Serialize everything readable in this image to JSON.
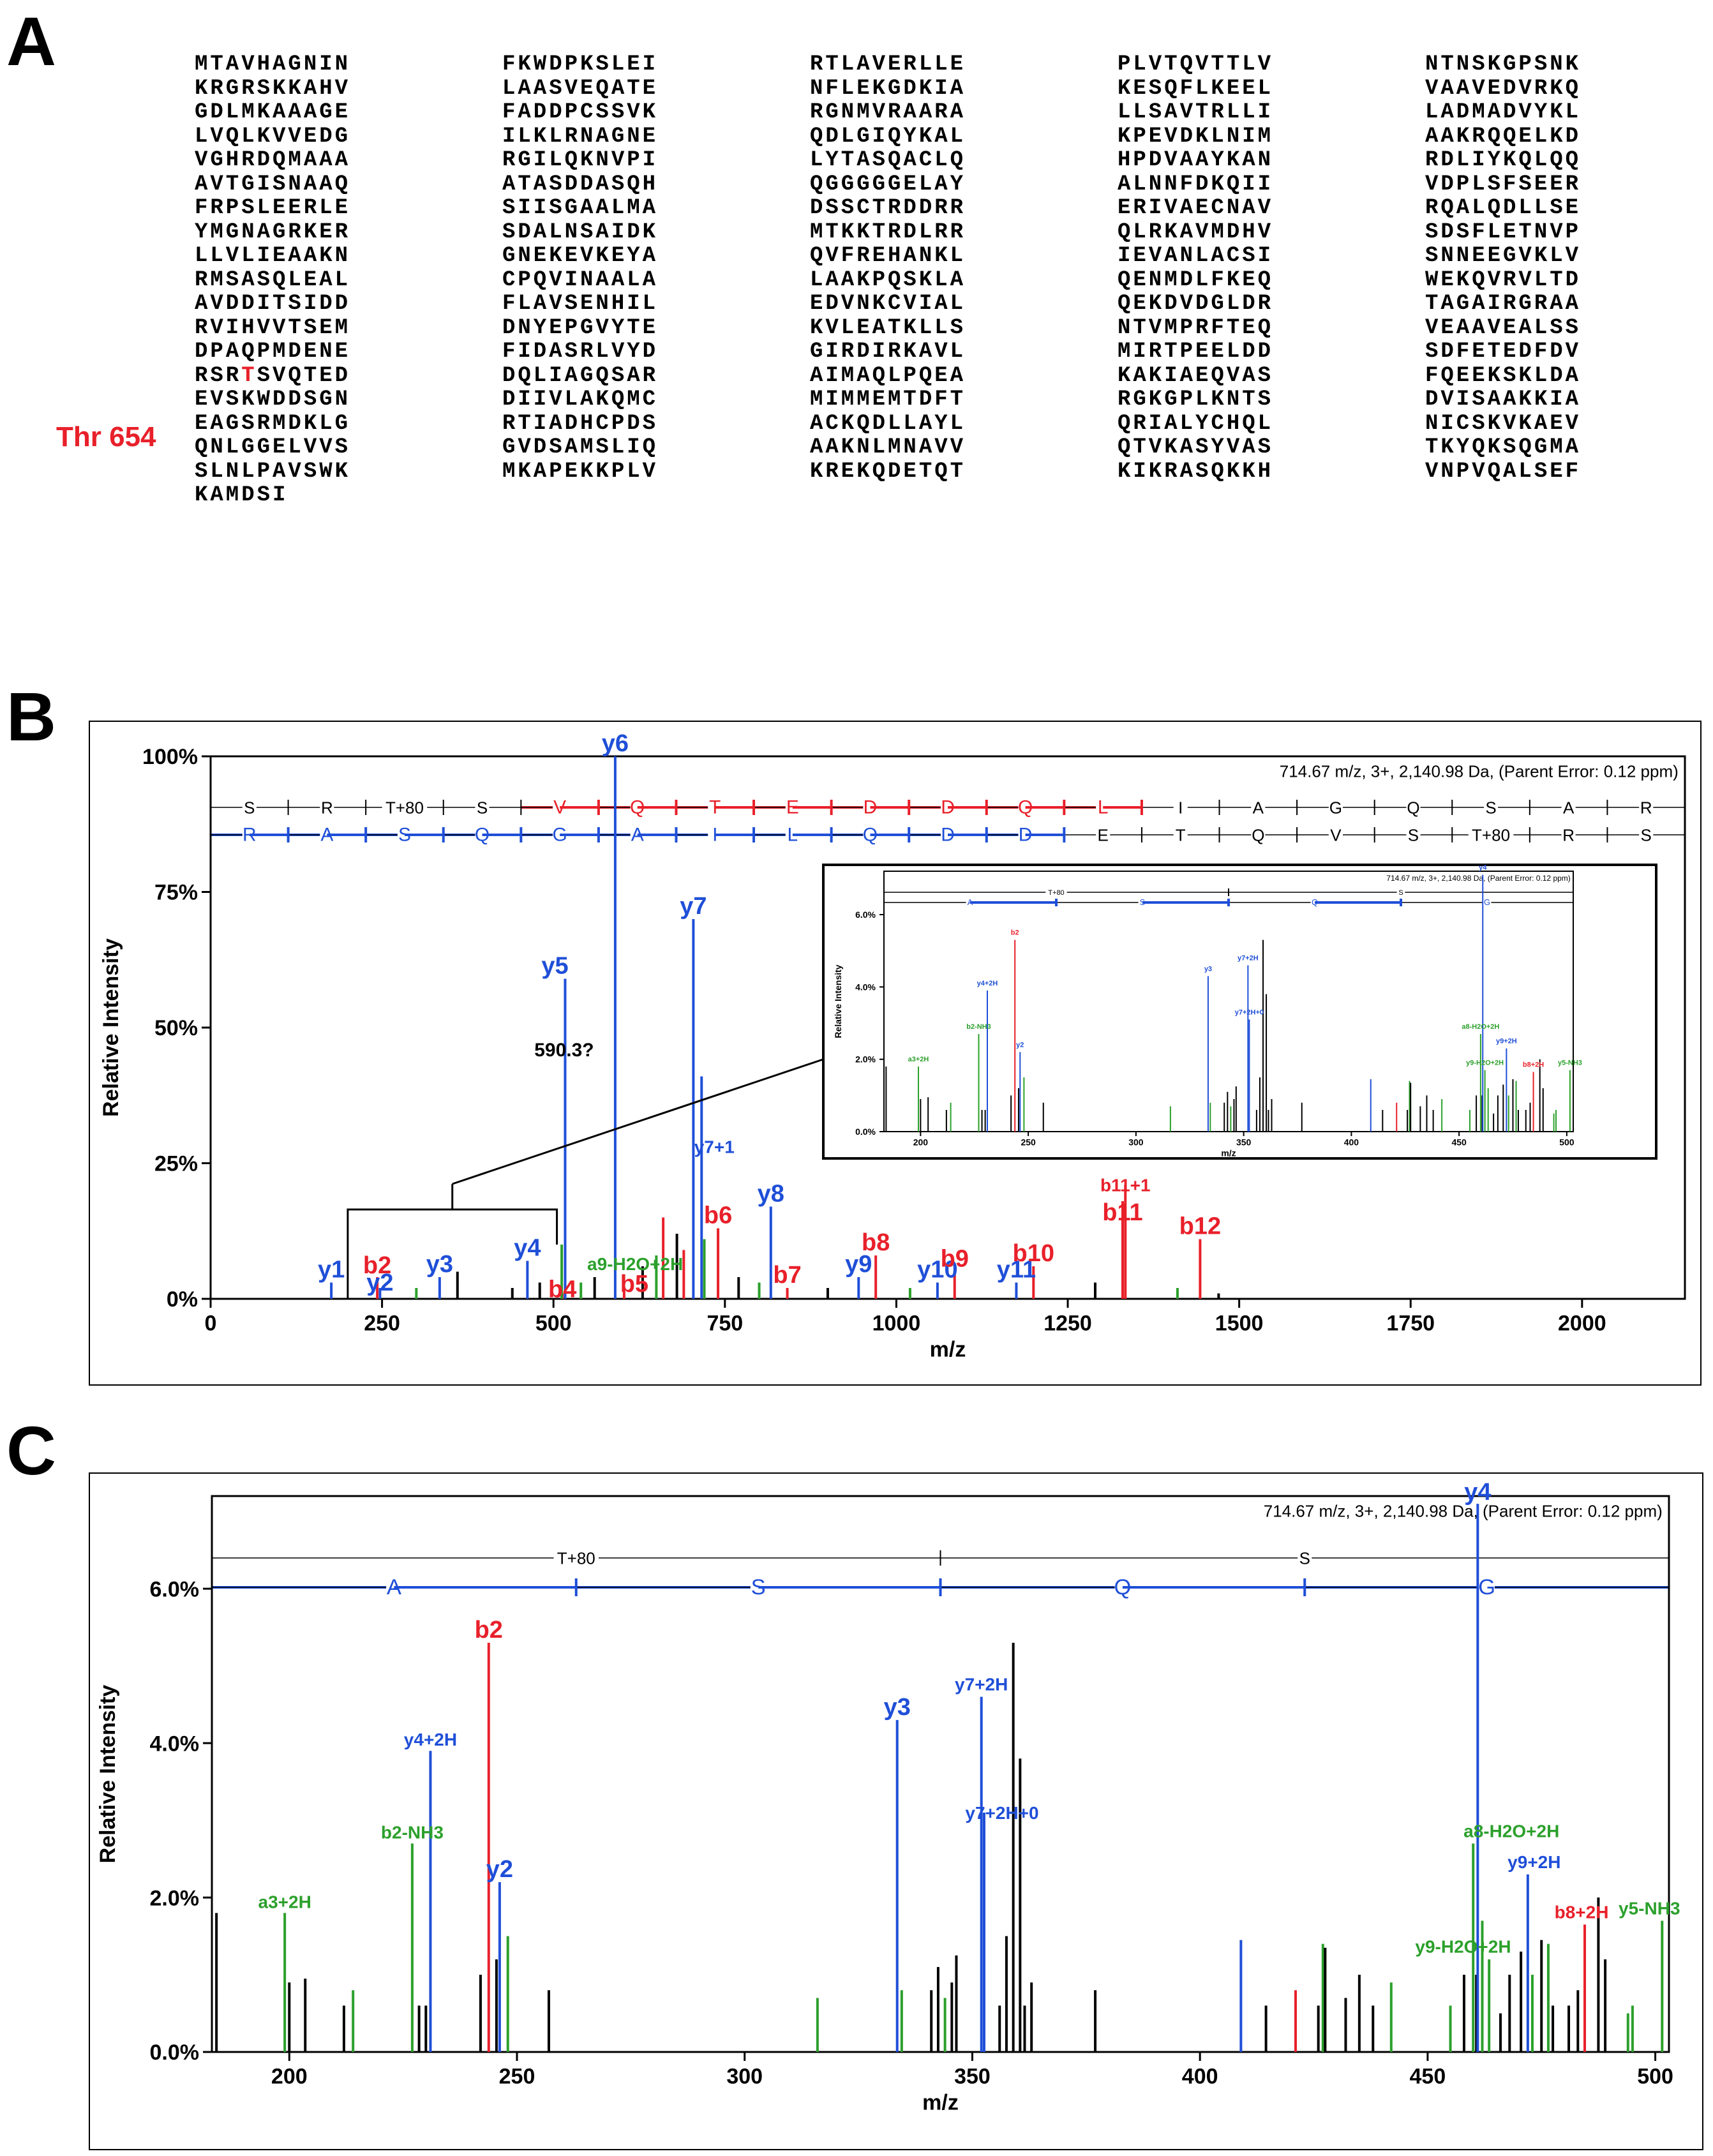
{
  "panels": {
    "a": "A",
    "b": "B",
    "c": "C"
  },
  "sequence_label": "Thr 654",
  "sequence_rows": [
    [
      "MTAVHAGNIN",
      "FKWDPKSLEI",
      "RTLAVERLLE",
      "PLVTQVTTLV",
      "NTNSKGPSNK"
    ],
    [
      "KRGRSKKAHV",
      "LAASVEQATE",
      "NFLEKGDKIA",
      "KESQFLKEEL",
      "VAAVEDVRKQ"
    ],
    [
      "GDLMKAAAGE",
      "FADDPCSSVK",
      "RGNMVRAARA",
      "LLSAVTRLLI",
      "LADMADVYKL"
    ],
    [
      "LVQLKVVEDG",
      "ILKLRNAGNE",
      "QDLGIQYKAL",
      "KPEVDKLNIM",
      "AAKRQQELKD"
    ],
    [
      "VGHRDQMAAA",
      "RGILQKNVPI",
      "LYTASQACLQ",
      "HPDVAAYKAN",
      "RDLIYKQLQQ"
    ],
    [
      "AVTGISNAAQ",
      "ATASDDASQH",
      "QGGGGGELAY",
      "ALNNFDKQII",
      "VDPLSFSEER"
    ],
    [
      "FRPSLEERLE",
      "SIISGAALMA",
      "DSSCTRDDRR",
      "ERIVAECNAV",
      "RQALQDLLSE"
    ],
    [
      "YMGNAGRKER",
      "SDALNSAIDK",
      "MTKKTRDLRR",
      "QLRKAVMDHV",
      "SDSFLETNVP"
    ],
    [
      "LLVLIEAAKN",
      "GNEKEVKEYA",
      "QVFREHANKL",
      "IEVANLACSI",
      "SNNEEGVKLV"
    ],
    [
      "RMSASQLEAL",
      "CPQVINAALA",
      "LAAKPQSKLA",
      "QENMDLFKEQ",
      "WEKQVRVLTD"
    ],
    [
      "AVDDITSIDD",
      "FLAVSENHIL",
      "EDVNKCVIAL",
      "QEKDVDGLDR",
      "TAGAIRGRAA"
    ],
    [
      "RVIHVVTSEM",
      "DNYEPGVYTE",
      "KVLEATKLLS",
      "NTVMPRFTEQ",
      "VEAAVEALSS"
    ],
    [
      "DPAQPMDENE",
      "FIDASRLVYD",
      "GIRDIRKAVL",
      "MIRTPEELDD",
      "SDFETEDFDV"
    ],
    [
      "RSRTSVQTED",
      "DQLIAGQSAR",
      "AIMAQLPQEA",
      "KAKIAEQVAS",
      "FQEEKSKLDA"
    ],
    [
      "EVSKWDDSGN",
      "DIIVLAKQMC",
      "MIMMEMTDFT",
      "RGKGPLKNTS",
      "DVISAAKKIA"
    ],
    [
      "EAGSRMDKLG",
      "RTIADHCPDS",
      "ACKQDLLAYL",
      "QRIALYCHQL",
      "NICSKVKAEV"
    ],
    [
      "QNLGGELVVS",
      "GVDSAMSLIQ",
      "AAKNLMNAVV",
      "QTVKASYVAS",
      "TKYQKSQGMA"
    ],
    [
      "SLNLPAVSWK",
      "MKAPEKKPLV",
      "KREKQDETQT",
      "KIKRASQKKH",
      "VNPVQALSEF"
    ],
    [
      "KAMDSI"
    ]
  ],
  "colors": {
    "b_ion": "#e8202a",
    "y_ion": "#1f4fd8",
    "neutral": "#2ca02c",
    "other": "#000000"
  },
  "chart_data": [
    {
      "type": "bar",
      "panel": "B",
      "header": "714.67 m/z, 3+, 2,140.98 Da,  (Parent Error: 0.12 ppm)",
      "xlabel": "m/z",
      "ylabel": "Relative Intensity",
      "xlim": [
        0,
        2150
      ],
      "ylim": [
        0,
        100
      ],
      "xticks": [
        0,
        250,
        500,
        750,
        1000,
        1250,
        1500,
        1750,
        2000
      ],
      "yticks": [
        0,
        25,
        50,
        75,
        100
      ],
      "ytick_labels": [
        "0%",
        "25%",
        "50%",
        "75%",
        "100%"
      ],
      "seq_b": [
        "S",
        "R",
        "T+80",
        "S",
        "V",
        "Q",
        "T",
        "E",
        "D",
        "D",
        "Q",
        "L",
        "I",
        "A",
        "G",
        "Q",
        "S",
        "A",
        "R"
      ],
      "seq_b_hl": [
        4,
        5,
        6,
        7,
        8,
        9,
        10,
        11
      ],
      "seq_y": [
        "R",
        "A",
        "S",
        "Q",
        "G",
        "A",
        "I",
        "L",
        "Q",
        "D",
        "D",
        "E",
        "T",
        "Q",
        "V",
        "S",
        "T+80",
        "R",
        "S"
      ],
      "seq_y_hl": [
        0,
        1,
        2,
        3,
        4,
        5,
        6,
        7,
        8,
        9,
        10
      ],
      "annotation": "590.3?",
      "bracket_range": [
        200,
        505
      ],
      "peaks": [
        {
          "x": 176,
          "y": 3,
          "label": "y1",
          "type": "y"
        },
        {
          "x": 243,
          "y": 4,
          "label": "b2",
          "type": "b"
        },
        {
          "x": 247,
          "y": 2,
          "label": "y2",
          "type": "y"
        },
        {
          "x": 334,
          "y": 4,
          "label": "y3",
          "type": "y"
        },
        {
          "x": 462,
          "y": 7,
          "label": "y4",
          "type": "y"
        },
        {
          "x": 513,
          "y": 1,
          "label": "b4",
          "type": "b"
        },
        {
          "x": 517,
          "y": 59,
          "label": "y5",
          "type": "y"
        },
        {
          "x": 590,
          "y": 100,
          "label": "y6",
          "type": "y"
        },
        {
          "x": 603,
          "y": 2,
          "label": "b5",
          "type": "b"
        },
        {
          "x": 704,
          "y": 70,
          "label": "y7",
          "type": "y"
        },
        {
          "x": 716,
          "y": 41,
          "label": "y7+1",
          "type": "y"
        },
        {
          "x": 512,
          "y": 10,
          "label": "a9-H2O+2H",
          "type": "n"
        },
        {
          "x": 740,
          "y": 13,
          "label": "b6",
          "type": "b"
        },
        {
          "x": 817,
          "y": 17,
          "label": "y8",
          "type": "y"
        },
        {
          "x": 841,
          "y": 2,
          "label": "b7",
          "type": "b"
        },
        {
          "x": 945,
          "y": 4,
          "label": "y9",
          "type": "y"
        },
        {
          "x": 970,
          "y": 8,
          "label": "b8",
          "type": "b"
        },
        {
          "x": 1060,
          "y": 3,
          "label": "y10",
          "type": "y"
        },
        {
          "x": 1085,
          "y": 5,
          "label": "b9",
          "type": "b"
        },
        {
          "x": 1175,
          "y": 3,
          "label": "y11",
          "type": "y"
        },
        {
          "x": 1200,
          "y": 6,
          "label": "b10",
          "type": "b"
        },
        {
          "x": 1330,
          "y": 18,
          "label": "b11",
          "type": "b"
        },
        {
          "x": 1334,
          "y": 21,
          "label": "b11+1",
          "type": "b"
        },
        {
          "x": 1443,
          "y": 11,
          "label": "b12",
          "type": "b"
        },
        {
          "x": 660,
          "y": 15,
          "type": "b"
        },
        {
          "x": 680,
          "y": 12,
          "type": "o"
        },
        {
          "x": 690,
          "y": 9,
          "type": "b"
        },
        {
          "x": 720,
          "y": 11,
          "type": "n"
        },
        {
          "x": 650,
          "y": 8,
          "type": "n"
        },
        {
          "x": 630,
          "y": 6,
          "type": "o"
        },
        {
          "x": 560,
          "y": 4,
          "type": "o"
        },
        {
          "x": 540,
          "y": 3,
          "type": "n"
        },
        {
          "x": 480,
          "y": 3,
          "type": "o"
        },
        {
          "x": 440,
          "y": 2,
          "type": "o"
        },
        {
          "x": 360,
          "y": 5,
          "type": "o"
        },
        {
          "x": 300,
          "y": 2,
          "type": "n"
        },
        {
          "x": 770,
          "y": 4,
          "type": "o"
        },
        {
          "x": 800,
          "y": 3,
          "type": "n"
        },
        {
          "x": 900,
          "y": 2,
          "type": "o"
        },
        {
          "x": 1020,
          "y": 2,
          "type": "n"
        },
        {
          "x": 1290,
          "y": 3,
          "type": "o"
        },
        {
          "x": 1410,
          "y": 2,
          "type": "n"
        },
        {
          "x": 1470,
          "y": 1,
          "type": "o"
        }
      ]
    },
    {
      "type": "bar",
      "panel": "B-inset",
      "header": "714.67 m/z, 3+, 2,140.98 Da,  (Parent Error: 0.12 ppm)",
      "xlabel": "m/z",
      "ylabel": "Relative Intensity",
      "xlim": [
        183,
        503
      ],
      "ylim": [
        0,
        7.2
      ],
      "xticks": [
        200,
        250,
        300,
        350,
        400,
        450,
        500
      ],
      "yticks": [
        0,
        2,
        4,
        6
      ],
      "ytick_labels": [
        "0.0%",
        "2.0%",
        "4.0%",
        "6.0%"
      ]
    },
    {
      "type": "bar",
      "panel": "C",
      "header": "714.67 m/z, 3+, 2,140.98 Da,  (Parent Error: 0.12 ppm)",
      "xlabel": "m/z",
      "ylabel": "Relative Intensity",
      "xlim": [
        183,
        503
      ],
      "ylim": [
        0,
        7.2
      ],
      "xticks": [
        200,
        250,
        300,
        350,
        400,
        450,
        500
      ],
      "yticks": [
        0,
        2,
        4,
        6
      ],
      "ytick_labels": [
        "0.0%",
        "2.0%",
        "4.0%",
        "6.0%"
      ],
      "seq_top": [
        "T+80",
        "S"
      ],
      "seq_bottom": [
        "A",
        "S",
        "Q",
        "G"
      ],
      "peaks": [
        {
          "x": 184,
          "y": 1.8,
          "type": "o"
        },
        {
          "x": 199,
          "y": 1.8,
          "label": "a3+2H",
          "type": "n"
        },
        {
          "x": 200,
          "y": 0.9,
          "type": "o"
        },
        {
          "x": 203.5,
          "y": 0.95,
          "type": "o"
        },
        {
          "x": 212,
          "y": 0.6,
          "type": "o"
        },
        {
          "x": 214,
          "y": 0.8,
          "type": "n"
        },
        {
          "x": 227,
          "y": 2.7,
          "label": "b2-NH3",
          "type": "n"
        },
        {
          "x": 228.5,
          "y": 0.6,
          "type": "o"
        },
        {
          "x": 230,
          "y": 0.6,
          "type": "o"
        },
        {
          "x": 231,
          "y": 3.9,
          "label": "y4+2H",
          "type": "y"
        },
        {
          "x": 242,
          "y": 1.0,
          "type": "o"
        },
        {
          "x": 243.8,
          "y": 5.3,
          "label": "b2",
          "type": "b"
        },
        {
          "x": 245.5,
          "y": 1.2,
          "type": "o"
        },
        {
          "x": 246.2,
          "y": 2.2,
          "label": "y2",
          "type": "y"
        },
        {
          "x": 248,
          "y": 1.5,
          "type": "n"
        },
        {
          "x": 257,
          "y": 0.8,
          "type": "o"
        },
        {
          "x": 316,
          "y": 0.7,
          "type": "n"
        },
        {
          "x": 333.5,
          "y": 4.3,
          "label": "y3",
          "type": "y"
        },
        {
          "x": 334.5,
          "y": 0.8,
          "type": "n"
        },
        {
          "x": 341,
          "y": 0.8,
          "type": "o"
        },
        {
          "x": 342.5,
          "y": 1.1,
          "type": "o"
        },
        {
          "x": 344,
          "y": 0.7,
          "type": "n"
        },
        {
          "x": 345.5,
          "y": 0.9,
          "type": "o"
        },
        {
          "x": 346.5,
          "y": 1.25,
          "type": "o"
        },
        {
          "x": 352,
          "y": 4.6,
          "label": "y7+2H",
          "type": "y"
        },
        {
          "x": 352.6,
          "y": 3.1,
          "label": "y7+2H+0",
          "type": "y"
        },
        {
          "x": 356,
          "y": 0.6,
          "type": "o"
        },
        {
          "x": 357.5,
          "y": 1.5,
          "type": "o"
        },
        {
          "x": 359,
          "y": 5.3,
          "type": "o"
        },
        {
          "x": 360.5,
          "y": 3.8,
          "type": "o"
        },
        {
          "x": 361.5,
          "y": 0.6,
          "type": "o"
        },
        {
          "x": 363,
          "y": 0.9,
          "type": "o"
        },
        {
          "x": 377,
          "y": 0.8,
          "type": "o"
        },
        {
          "x": 409,
          "y": 1.45,
          "type": "y"
        },
        {
          "x": 414.5,
          "y": 0.6,
          "type": "o"
        },
        {
          "x": 421,
          "y": 0.8,
          "type": "b"
        },
        {
          "x": 426,
          "y": 0.6,
          "type": "o"
        },
        {
          "x": 427,
          "y": 1.4,
          "type": "n"
        },
        {
          "x": 427.5,
          "y": 1.35,
          "type": "o"
        },
        {
          "x": 432,
          "y": 0.7,
          "type": "o"
        },
        {
          "x": 435,
          "y": 1.0,
          "type": "o"
        },
        {
          "x": 438,
          "y": 0.6,
          "type": "o"
        },
        {
          "x": 442,
          "y": 0.9,
          "type": "n"
        },
        {
          "x": 455,
          "y": 0.6,
          "type": "n"
        },
        {
          "x": 458,
          "y": 1.0,
          "type": "o"
        },
        {
          "x": 460,
          "y": 2.7,
          "label": "a8-H2O+2H",
          "type": "n"
        },
        {
          "x": 460.7,
          "y": 1.0,
          "type": "o"
        },
        {
          "x": 461,
          "y": 7.1,
          "label": "y4",
          "type": "y"
        },
        {
          "x": 462,
          "y": 1.7,
          "label": "y9-H2O+2H",
          "type": "n"
        },
        {
          "x": 463.5,
          "y": 1.2,
          "type": "n"
        },
        {
          "x": 466,
          "y": 0.5,
          "type": "o"
        },
        {
          "x": 468,
          "y": 1.0,
          "type": "o"
        },
        {
          "x": 470.5,
          "y": 1.3,
          "type": "o"
        },
        {
          "x": 472,
          "y": 2.3,
          "label": "y9+2H",
          "type": "y"
        },
        {
          "x": 473,
          "y": 1.0,
          "type": "n"
        },
        {
          "x": 475,
          "y": 1.45,
          "type": "o"
        },
        {
          "x": 476.5,
          "y": 1.4,
          "type": "n"
        },
        {
          "x": 477.5,
          "y": 0.6,
          "type": "o"
        },
        {
          "x": 481,
          "y": 0.6,
          "type": "o"
        },
        {
          "x": 483,
          "y": 0.8,
          "type": "o"
        },
        {
          "x": 484.5,
          "y": 1.65,
          "label": "b8+2H",
          "type": "b"
        },
        {
          "x": 487.5,
          "y": 2.0,
          "type": "o"
        },
        {
          "x": 489,
          "y": 1.2,
          "type": "o"
        },
        {
          "x": 494,
          "y": 0.5,
          "type": "n"
        },
        {
          "x": 495,
          "y": 0.6,
          "type": "n"
        },
        {
          "x": 501.5,
          "y": 1.7,
          "label": "y5-NH3",
          "type": "n"
        }
      ]
    }
  ]
}
